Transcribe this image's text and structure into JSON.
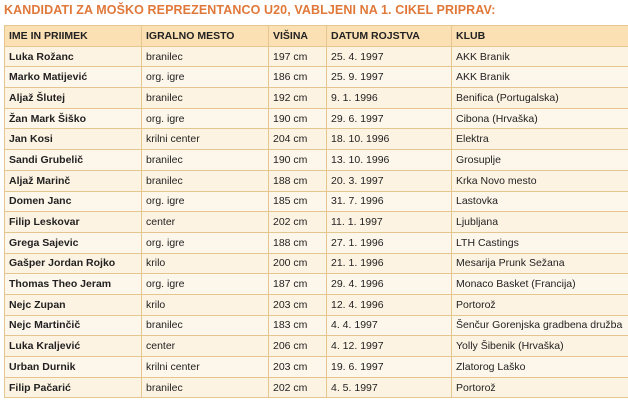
{
  "heading": "KANDIDATI ZA MOŠKO REPREZENTANCO U20, VABLJENI NA 1. CIKEL PRIPRAV:",
  "table": {
    "columns": [
      "IME IN PRIIMEK",
      "IGRALNO MESTO",
      "VIŠINA",
      "DATUM ROJSTVA",
      "KLUB"
    ],
    "rows": [
      [
        "Luka Rožanc",
        "branilec",
        "197 cm",
        "25. 4. 1997",
        "AKK Branik"
      ],
      [
        "Marko Matijević",
        "org. igre",
        "186 cm",
        "25. 9. 1997",
        "AKK Branik"
      ],
      [
        "Aljaž Šlutej",
        "branilec",
        "192 cm",
        "9. 1. 1996",
        "Benifica (Portugalska)"
      ],
      [
        "Žan Mark Šiško",
        "org. igre",
        "190 cm",
        "29. 6. 1997",
        "Cibona (Hrvaška)"
      ],
      [
        "Jan Kosi",
        "krilni center",
        "204 cm",
        "18. 10. 1996",
        "Elektra"
      ],
      [
        "Sandi Grubelič",
        "branilec",
        "190 cm",
        "13. 10. 1996",
        "Grosuplje"
      ],
      [
        "Aljaž Marinč",
        "branilec",
        "188 cm",
        "20. 3. 1997",
        "Krka Novo mesto"
      ],
      [
        "Domen Janc",
        "org. igre",
        "185 cm",
        "31. 7. 1996",
        "Lastovka"
      ],
      [
        "Filip Leskovar",
        "center",
        "202 cm",
        "11. 1. 1997",
        "Ljubljana"
      ],
      [
        "Grega Sajevic",
        "org. igre",
        "188 cm",
        "27. 1. 1996",
        "LTH Castings"
      ],
      [
        "Gašper Jordan Rojko",
        "krilo",
        "200 cm",
        "21. 1. 1996",
        "Mesarija Prunk Sežana"
      ],
      [
        "Thomas Theo Jeram",
        "org. igre",
        "187 cm",
        "29. 4. 1996",
        "Monaco Basket (Francija)"
      ],
      [
        "Nejc Zupan",
        "krilo",
        "203 cm",
        "12. 4. 1996",
        "Portorož"
      ],
      [
        "Nejc Martinčič",
        "branilec",
        "183 cm",
        "4. 4. 1997",
        "Šenčur Gorenjska gradbena družba"
      ],
      [
        "Luka Kraljević",
        "center",
        "206 cm",
        "4. 12. 1997",
        "Yolly Šibenik (Hrvaška)"
      ],
      [
        "Urban Durnik",
        "krilni center",
        "203 cm",
        "19. 6. 1997",
        "Zlatorog Laško"
      ],
      [
        "Filip Pačarić",
        "branilec",
        "202 cm",
        "4. 5. 1997",
        "Portorož"
      ]
    ]
  }
}
